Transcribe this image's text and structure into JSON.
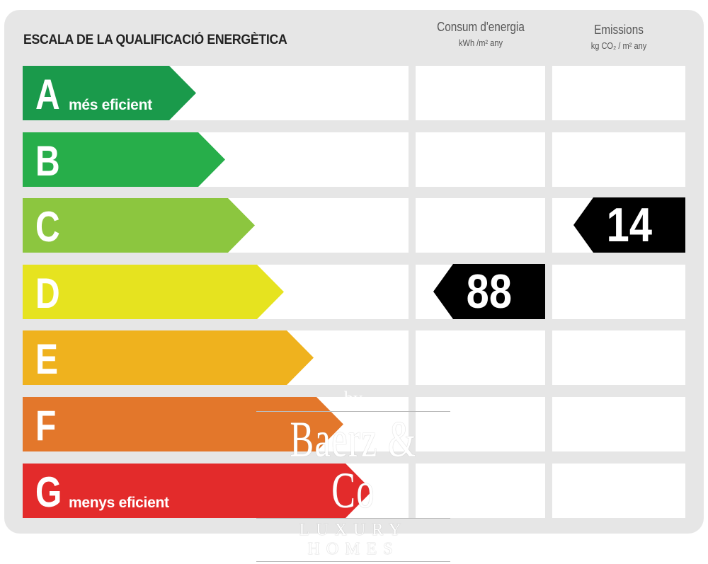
{
  "title": "ESCALA DE LA QUALIFICACIÓ ENERGÈTICA",
  "columns": [
    {
      "label": "Consum d'energia",
      "unit": "kWh /m² any"
    },
    {
      "label": "Emissions",
      "unit": "kg CO₂ / m² any"
    }
  ],
  "ratings": [
    {
      "letter": "A",
      "caption": "més eficient",
      "color": "#1a9a4b"
    },
    {
      "letter": "B",
      "caption": "",
      "color": "#27ae4a"
    },
    {
      "letter": "C",
      "caption": "",
      "color": "#8cc63f"
    },
    {
      "letter": "D",
      "caption": "",
      "color": "#e6e31f"
    },
    {
      "letter": "E",
      "caption": "",
      "color": "#efb21e"
    },
    {
      "letter": "F",
      "caption": "",
      "color": "#e3772b"
    },
    {
      "letter": "G",
      "caption": "menys eficient",
      "color": "#e32b2b"
    }
  ],
  "consumption": {
    "value": "88",
    "rating": "D"
  },
  "emissions": {
    "value": "14",
    "rating": "C"
  },
  "watermark": {
    "by": "by",
    "name": "Baerz & Co",
    "tagline": "LUXURY HOMES"
  }
}
